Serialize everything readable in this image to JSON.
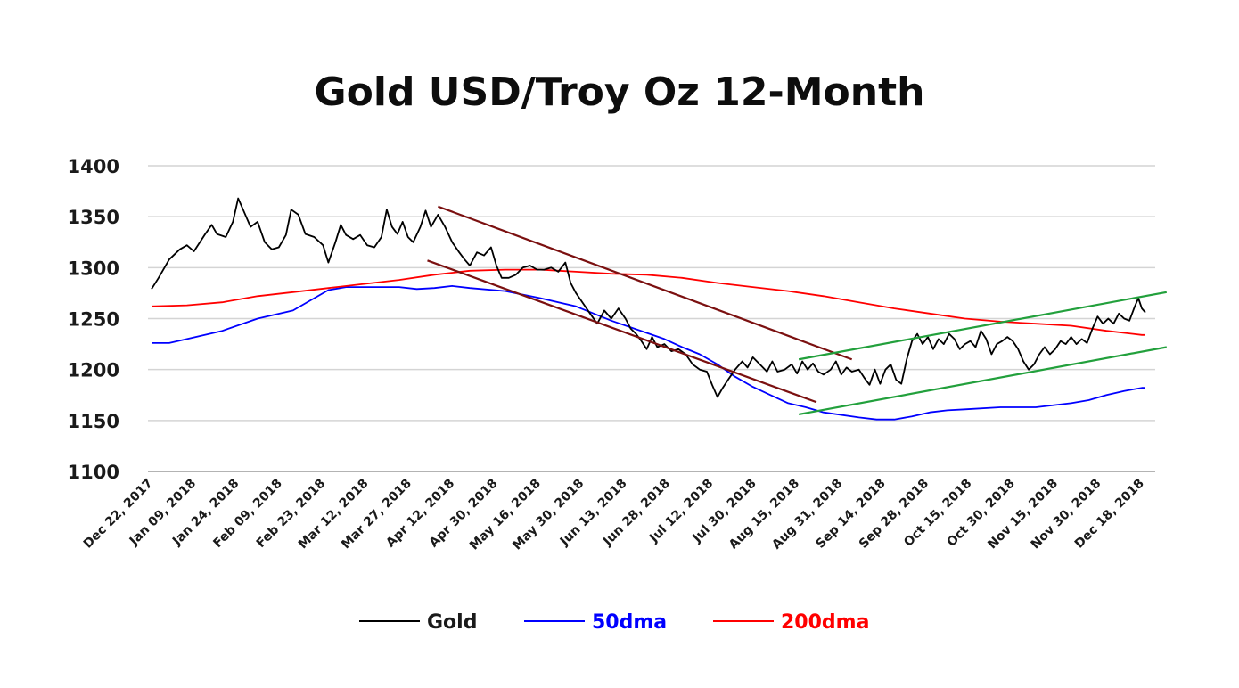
{
  "chart_data": {
    "type": "line",
    "title": "Gold USD/Troy Oz 12-Month",
    "ylim": [
      1100,
      1400
    ],
    "yticks": [
      1100,
      1150,
      1200,
      1250,
      1300,
      1350,
      1400
    ],
    "categories": [
      "Dec 22, 2017",
      "Jan 09, 2018",
      "Jan 24, 2018",
      "Feb 09, 2018",
      "Feb 23, 2018",
      "Mar 12, 2018",
      "Mar 27, 2018",
      "Apr 12, 2018",
      "Apr 30, 2018",
      "May 16, 2018",
      "May 30, 2018",
      "Jun 13, 2018",
      "Jun 28, 2018",
      "Jul 12, 2018",
      "Jul 30, 2018",
      "Aug 15, 2018",
      "Aug 31, 2018",
      "Sep 14, 2018",
      "Sep 28, 2018",
      "Oct 15, 2018",
      "Oct 30, 2018",
      "Nov 15, 2018",
      "Nov 30, 2018",
      "Dec 18, 2018"
    ],
    "grid": true,
    "legend_position": "bottom",
    "series": [
      {
        "name": "Gold",
        "color": "#000000",
        "values": [
          [
            0,
            1279
          ],
          [
            0.2,
            1290
          ],
          [
            0.5,
            1308
          ],
          [
            0.8,
            1318
          ],
          [
            1.0,
            1322
          ],
          [
            1.2,
            1316
          ],
          [
            1.5,
            1332
          ],
          [
            1.7,
            1342
          ],
          [
            1.85,
            1333
          ],
          [
            2.1,
            1330
          ],
          [
            2.3,
            1345
          ],
          [
            2.45,
            1368
          ],
          [
            2.6,
            1356
          ],
          [
            2.8,
            1340
          ],
          [
            3.0,
            1345
          ],
          [
            3.2,
            1325
          ],
          [
            3.4,
            1318
          ],
          [
            3.6,
            1320
          ],
          [
            3.8,
            1332
          ],
          [
            3.95,
            1357
          ],
          [
            4.15,
            1352
          ],
          [
            4.35,
            1333
          ],
          [
            4.6,
            1330
          ],
          [
            4.85,
            1322
          ],
          [
            5.0,
            1305
          ],
          [
            5.2,
            1325
          ],
          [
            5.35,
            1342
          ],
          [
            5.5,
            1332
          ],
          [
            5.7,
            1328
          ],
          [
            5.9,
            1332
          ],
          [
            6.1,
            1322
          ],
          [
            6.3,
            1320
          ],
          [
            6.5,
            1330
          ],
          [
            6.65,
            1357
          ],
          [
            6.8,
            1340
          ],
          [
            6.95,
            1333
          ],
          [
            7.1,
            1345
          ],
          [
            7.25,
            1330
          ],
          [
            7.4,
            1325
          ],
          [
            7.6,
            1340
          ],
          [
            7.75,
            1356
          ],
          [
            7.9,
            1340
          ],
          [
            8.1,
            1352
          ],
          [
            8.3,
            1340
          ],
          [
            8.5,
            1325
          ],
          [
            8.7,
            1315
          ],
          [
            8.85,
            1308
          ],
          [
            9.0,
            1302
          ],
          [
            9.2,
            1315
          ],
          [
            9.4,
            1312
          ],
          [
            9.6,
            1320
          ],
          [
            9.75,
            1302
          ],
          [
            9.9,
            1290
          ],
          [
            10.1,
            1290
          ],
          [
            10.3,
            1293
          ],
          [
            10.5,
            1300
          ],
          [
            10.7,
            1302
          ],
          [
            10.9,
            1298
          ],
          [
            11.1,
            1298
          ],
          [
            11.3,
            1300
          ],
          [
            11.5,
            1296
          ],
          [
            11.7,
            1305
          ],
          [
            11.85,
            1285
          ],
          [
            12.0,
            1275
          ],
          [
            12.2,
            1265
          ],
          [
            12.4,
            1255
          ],
          [
            12.6,
            1245
          ],
          [
            12.8,
            1258
          ],
          [
            13.0,
            1250
          ],
          [
            13.2,
            1260
          ],
          [
            13.4,
            1250
          ],
          [
            13.55,
            1240
          ],
          [
            13.7,
            1235
          ],
          [
            13.85,
            1228
          ],
          [
            14.0,
            1220
          ],
          [
            14.15,
            1232
          ],
          [
            14.3,
            1222
          ],
          [
            14.5,
            1225
          ],
          [
            14.7,
            1218
          ],
          [
            14.9,
            1220
          ],
          [
            15.1,
            1215
          ],
          [
            15.3,
            1205
          ],
          [
            15.5,
            1200
          ],
          [
            15.7,
            1198
          ],
          [
            15.85,
            1185
          ],
          [
            16.0,
            1173
          ],
          [
            16.15,
            1182
          ],
          [
            16.3,
            1190
          ],
          [
            16.5,
            1200
          ],
          [
            16.7,
            1208
          ],
          [
            16.85,
            1202
          ],
          [
            17.0,
            1212
          ],
          [
            17.2,
            1205
          ],
          [
            17.4,
            1198
          ],
          [
            17.55,
            1208
          ],
          [
            17.7,
            1198
          ],
          [
            17.9,
            1200
          ],
          [
            18.1,
            1205
          ],
          [
            18.25,
            1196
          ],
          [
            18.4,
            1208
          ],
          [
            18.55,
            1200
          ],
          [
            18.7,
            1206
          ],
          [
            18.85,
            1198
          ],
          [
            19.0,
            1195
          ],
          [
            19.2,
            1200
          ],
          [
            19.35,
            1208
          ],
          [
            19.5,
            1195
          ],
          [
            19.65,
            1202
          ],
          [
            19.8,
            1198
          ],
          [
            20.0,
            1200
          ],
          [
            20.15,
            1192
          ],
          [
            20.3,
            1185
          ],
          [
            20.45,
            1200
          ],
          [
            20.6,
            1186
          ],
          [
            20.75,
            1200
          ],
          [
            20.9,
            1205
          ],
          [
            21.05,
            1190
          ],
          [
            21.2,
            1186
          ],
          [
            21.35,
            1210
          ],
          [
            21.5,
            1228
          ],
          [
            21.65,
            1235
          ],
          [
            21.8,
            1225
          ],
          [
            21.95,
            1232
          ],
          [
            22.1,
            1220
          ],
          [
            22.25,
            1230
          ],
          [
            22.4,
            1225
          ],
          [
            22.55,
            1235
          ],
          [
            22.7,
            1230
          ],
          [
            22.85,
            1220
          ],
          [
            23.0,
            1225
          ],
          [
            23.15,
            1228
          ],
          [
            23.3,
            1222
          ],
          [
            23.45,
            1238
          ],
          [
            23.6,
            1230
          ],
          [
            23.75,
            1215
          ],
          [
            23.9,
            1225
          ],
          [
            24.05,
            1228
          ],
          [
            24.2,
            1232
          ],
          [
            24.35,
            1228
          ],
          [
            24.5,
            1220
          ],
          [
            24.65,
            1208
          ],
          [
            24.8,
            1200
          ],
          [
            24.95,
            1205
          ],
          [
            25.1,
            1215
          ],
          [
            25.25,
            1222
          ],
          [
            25.4,
            1215
          ],
          [
            25.55,
            1220
          ],
          [
            25.7,
            1228
          ],
          [
            25.85,
            1225
          ],
          [
            26.0,
            1232
          ],
          [
            26.15,
            1225
          ],
          [
            26.3,
            1230
          ],
          [
            26.45,
            1226
          ],
          [
            26.6,
            1240
          ],
          [
            26.75,
            1252
          ],
          [
            26.9,
            1245
          ],
          [
            27.05,
            1250
          ],
          [
            27.2,
            1245
          ],
          [
            27.35,
            1255
          ],
          [
            27.5,
            1250
          ],
          [
            27.65,
            1248
          ],
          [
            27.8,
            1262
          ],
          [
            27.9,
            1270
          ],
          [
            28.0,
            1260
          ],
          [
            28.1,
            1256
          ]
        ]
      },
      {
        "name": "50dma",
        "color": "#0000ff",
        "values": [
          [
            0,
            1226
          ],
          [
            0.5,
            1226
          ],
          [
            1.0,
            1230
          ],
          [
            2.0,
            1238
          ],
          [
            3.0,
            1250
          ],
          [
            4.0,
            1258
          ],
          [
            4.5,
            1268
          ],
          [
            5.0,
            1278
          ],
          [
            5.5,
            1281
          ],
          [
            6.0,
            1281
          ],
          [
            7.0,
            1281
          ],
          [
            7.5,
            1279
          ],
          [
            8.0,
            1280
          ],
          [
            8.5,
            1282
          ],
          [
            9.0,
            1280
          ],
          [
            10.0,
            1277
          ],
          [
            11.0,
            1270
          ],
          [
            12.0,
            1262
          ],
          [
            12.5,
            1255
          ],
          [
            13.0,
            1248
          ],
          [
            14.0,
            1236
          ],
          [
            14.5,
            1230
          ],
          [
            15.0,
            1222
          ],
          [
            15.5,
            1215
          ],
          [
            16.0,
            1205
          ],
          [
            16.5,
            1193
          ],
          [
            17.0,
            1183
          ],
          [
            17.5,
            1175
          ],
          [
            18.0,
            1167
          ],
          [
            18.5,
            1163
          ],
          [
            19.0,
            1158
          ],
          [
            20.0,
            1153
          ],
          [
            20.5,
            1151
          ],
          [
            21.0,
            1151
          ],
          [
            21.5,
            1154
          ],
          [
            22.0,
            1158
          ],
          [
            22.5,
            1160
          ],
          [
            23.0,
            1161
          ],
          [
            24.0,
            1163
          ],
          [
            25.0,
            1163
          ],
          [
            26.0,
            1167
          ],
          [
            26.5,
            1170
          ],
          [
            27.0,
            1175
          ],
          [
            27.5,
            1179
          ],
          [
            28.0,
            1182
          ],
          [
            28.1,
            1182
          ]
        ]
      },
      {
        "name": "200dma",
        "color": "#ff0000",
        "values": [
          [
            0,
            1262
          ],
          [
            1.0,
            1263
          ],
          [
            2.0,
            1266
          ],
          [
            3.0,
            1272
          ],
          [
            4.0,
            1276
          ],
          [
            5.0,
            1280
          ],
          [
            6.0,
            1284
          ],
          [
            7.0,
            1288
          ],
          [
            8.0,
            1293
          ],
          [
            9.0,
            1297
          ],
          [
            10.0,
            1298
          ],
          [
            11.0,
            1298
          ],
          [
            12.0,
            1296
          ],
          [
            13.0,
            1294
          ],
          [
            14.0,
            1293
          ],
          [
            15.0,
            1290
          ],
          [
            16.0,
            1285
          ],
          [
            17.0,
            1281
          ],
          [
            18.0,
            1277
          ],
          [
            19.0,
            1272
          ],
          [
            20.0,
            1266
          ],
          [
            21.0,
            1260
          ],
          [
            22.0,
            1255
          ],
          [
            23.0,
            1250
          ],
          [
            24.0,
            1247
          ],
          [
            25.0,
            1245
          ],
          [
            26.0,
            1243
          ],
          [
            27.0,
            1238
          ],
          [
            28.0,
            1234
          ],
          [
            28.1,
            1234
          ]
        ]
      }
    ],
    "annotations": [
      {
        "name": "downtrend-upper",
        "color": "#7b1010",
        "from": [
          8.1,
          1360
        ],
        "to": [
          19.8,
          1210
        ]
      },
      {
        "name": "downtrend-lower",
        "color": "#7b1010",
        "from": [
          7.8,
          1307
        ],
        "to": [
          18.8,
          1168
        ]
      },
      {
        "name": "uptrend-upper",
        "color": "#22a03c",
        "from": [
          18.3,
          1210
        ],
        "to": [
          28.7,
          1276
        ]
      },
      {
        "name": "uptrend-lower",
        "color": "#22a03c",
        "from": [
          18.3,
          1156
        ],
        "to": [
          28.7,
          1222
        ]
      }
    ]
  }
}
